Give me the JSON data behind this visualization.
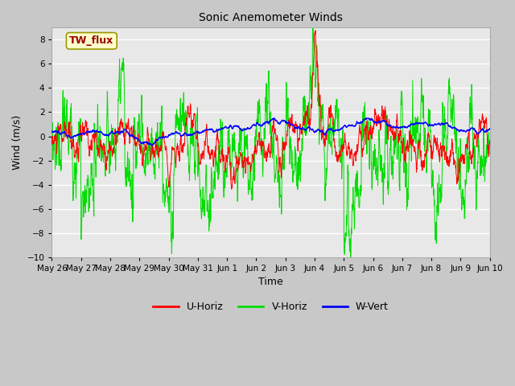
{
  "title": "Sonic Anemometer Winds",
  "xlabel": "Time",
  "ylabel": "Wind (m/s)",
  "ylim": [
    -10,
    9
  ],
  "yticks": [
    -10,
    -8,
    -6,
    -4,
    -2,
    0,
    2,
    4,
    6,
    8
  ],
  "xtick_labels": [
    "May 26",
    "May 27",
    "May 28",
    "May 29",
    "May 30",
    "May 31",
    "Jun 1",
    "Jun 2",
    "Jun 3",
    "Jun 4",
    "Jun 5",
    "Jun 6",
    "Jun 7",
    "Jun 8",
    "Jun 9",
    "Jun 10"
  ],
  "colors": {
    "U": "#ff0000",
    "V": "#00dd00",
    "W": "#0000ff",
    "fig_bg": "#c8c8c8",
    "plot_bg": "#e8e8e8",
    "grid": "#ffffff",
    "annotation_bg": "#ffffcc",
    "annotation_border": "#999900",
    "annotation_text": "#990000"
  },
  "legend": [
    "U-Horiz",
    "V-Horiz",
    "W-Vert"
  ],
  "annotation_text": "TW_flux"
}
